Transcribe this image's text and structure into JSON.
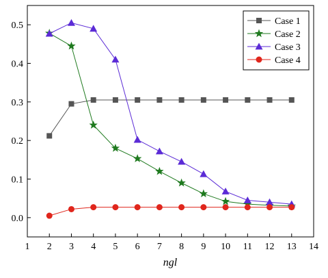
{
  "chart_data": {
    "type": "line",
    "title": "",
    "xlabel": "ngl",
    "ylabel": "",
    "xlim": [
      1,
      14
    ],
    "ylim": [
      -0.05,
      0.55
    ],
    "xticks": [
      1,
      2,
      3,
      4,
      5,
      6,
      7,
      8,
      9,
      10,
      11,
      12,
      13,
      14
    ],
    "yticks": [
      0.0,
      0.1,
      0.2,
      0.3,
      0.4,
      0.5
    ],
    "ytick_labels": [
      "0.0",
      "0.1",
      "0.2",
      "0.3",
      "0.4",
      "0.5"
    ],
    "legend_position": "top-right",
    "grid": false,
    "series": [
      {
        "name": "Case 1",
        "color": "#555555",
        "marker": "square",
        "x": [
          2,
          3,
          4,
          5,
          6,
          7,
          8,
          9,
          10,
          11,
          12,
          13
        ],
        "y": [
          0.212,
          0.295,
          0.305,
          0.305,
          0.305,
          0.305,
          0.305,
          0.305,
          0.305,
          0.305,
          0.305,
          0.305
        ]
      },
      {
        "name": "Case 2",
        "color": "#1f7a1f",
        "marker": "star",
        "x": [
          2,
          3,
          4,
          5,
          6,
          7,
          8,
          9,
          10,
          11,
          12,
          13
        ],
        "y": [
          0.478,
          0.445,
          0.24,
          0.18,
          0.153,
          0.12,
          0.09,
          0.062,
          0.042,
          0.035,
          0.032,
          0.03
        ]
      },
      {
        "name": "Case 3",
        "color": "#5b2bd6",
        "marker": "triangle",
        "x": [
          2,
          3,
          4,
          5,
          6,
          7,
          8,
          9,
          10,
          11,
          12,
          13
        ],
        "y": [
          0.477,
          0.505,
          0.49,
          0.41,
          0.202,
          0.172,
          0.145,
          0.113,
          0.068,
          0.045,
          0.04,
          0.035
        ]
      },
      {
        "name": "Case 4",
        "color": "#e0261c",
        "marker": "circle",
        "x": [
          2,
          3,
          4,
          5,
          6,
          7,
          8,
          9,
          10,
          11,
          12,
          13
        ],
        "y": [
          0.005,
          0.022,
          0.027,
          0.027,
          0.027,
          0.027,
          0.027,
          0.027,
          0.027,
          0.027,
          0.027,
          0.027
        ]
      }
    ]
  }
}
